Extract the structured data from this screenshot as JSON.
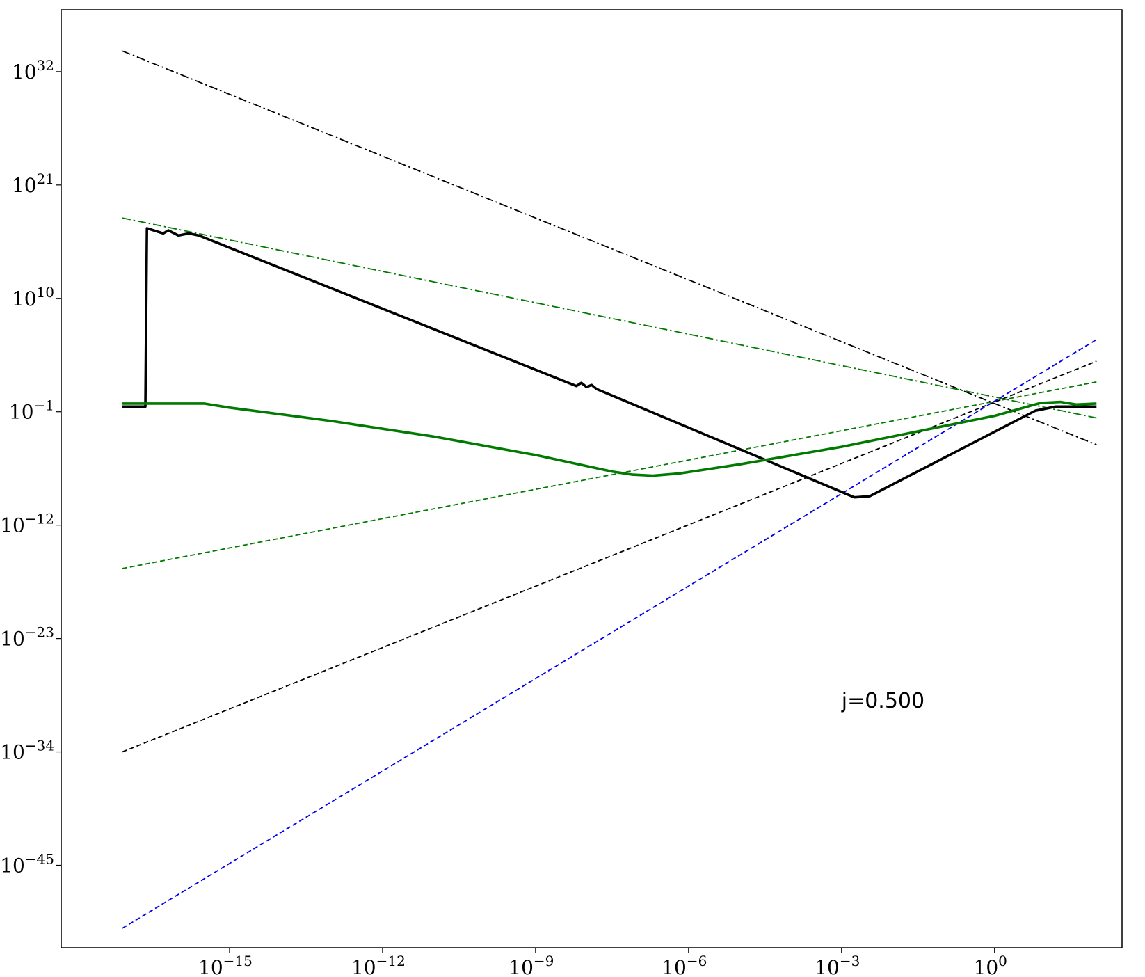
{
  "chart_data": {
    "type": "line",
    "title": "",
    "xlabel": "",
    "ylabel": "",
    "xscale": "log",
    "yscale": "log",
    "xlim_log10": [
      -18.3,
      2.5
    ],
    "ylim_log10": [
      -53.0,
      38.0
    ],
    "grid": false,
    "legend": "none",
    "x_ticks": [
      {
        "base": "10",
        "exp": "−15",
        "log10": -15
      },
      {
        "base": "10",
        "exp": "−12",
        "log10": -12
      },
      {
        "base": "10",
        "exp": "−9",
        "log10": -9
      },
      {
        "base": "10",
        "exp": "−6",
        "log10": -6
      },
      {
        "base": "10",
        "exp": "−3",
        "log10": -3
      },
      {
        "base": "10",
        "exp": "0",
        "log10": 0
      }
    ],
    "y_ticks": [
      {
        "base": "10",
        "exp": "32",
        "log10": 32
      },
      {
        "base": "10",
        "exp": "21",
        "log10": 21
      },
      {
        "base": "10",
        "exp": "10",
        "log10": 10
      },
      {
        "base": "10",
        "exp": "−1",
        "log10": -1
      },
      {
        "base": "10",
        "exp": "−12",
        "log10": -12
      },
      {
        "base": "10",
        "exp": "−23",
        "log10": -23
      },
      {
        "base": "10",
        "exp": "−34",
        "log10": -34
      },
      {
        "base": "10",
        "exp": "−45",
        "log10": -45
      }
    ],
    "annotations": [
      {
        "text": "j=0.500",
        "x_log10": -3.0,
        "y_log10": -29.7
      }
    ],
    "series": [
      {
        "style": "solid-thick",
        "color": "#000000",
        "points_log10": [
          [
            -17.1,
            -0.5
          ],
          [
            -16.65,
            -0.5
          ],
          [
            -16.62,
            16.8
          ],
          [
            -16.3,
            16.3
          ],
          [
            -16.2,
            16.6
          ],
          [
            -16.0,
            16.1
          ],
          [
            -15.8,
            16.3
          ],
          [
            -15.6,
            16.1
          ],
          [
            -8.2,
            1.5
          ],
          [
            -8.1,
            1.8
          ],
          [
            -8.0,
            1.4
          ],
          [
            -7.9,
            1.6
          ],
          [
            -7.8,
            1.2
          ],
          [
            -4.0,
            -6.7
          ],
          [
            -2.75,
            -9.3
          ],
          [
            -2.45,
            -9.2
          ],
          [
            0.8,
            -0.9
          ],
          [
            1.2,
            -0.5
          ],
          [
            2.0,
            -0.5
          ]
        ]
      },
      {
        "style": "solid-thick",
        "color": "#007a00",
        "points_log10": [
          [
            -17.1,
            -0.2
          ],
          [
            -15.5,
            -0.2
          ],
          [
            -15.0,
            -0.6
          ],
          [
            -13.0,
            -1.9
          ],
          [
            -11.0,
            -3.4
          ],
          [
            -9.0,
            -5.2
          ],
          [
            -7.5,
            -6.8
          ],
          [
            -7.1,
            -7.1
          ],
          [
            -6.7,
            -7.2
          ],
          [
            -6.2,
            -7.0
          ],
          [
            -5.0,
            -6.1
          ],
          [
            -3.0,
            -4.4
          ],
          [
            0.0,
            -1.4
          ],
          [
            0.9,
            -0.15
          ],
          [
            1.3,
            -0.05
          ],
          [
            1.6,
            -0.3
          ],
          [
            2.0,
            -0.2
          ]
        ]
      },
      {
        "style": "dashdot",
        "color": "#000000",
        "points_log10": [
          [
            -17.1,
            34.0
          ],
          [
            2.0,
            -4.2
          ]
        ]
      },
      {
        "style": "dashdot",
        "color": "#007a00",
        "points_log10": [
          [
            -17.1,
            17.8
          ],
          [
            2.0,
            -1.6
          ]
        ]
      },
      {
        "style": "dashed",
        "color": "#007a00",
        "points_log10": [
          [
            -17.1,
            -16.2
          ],
          [
            2.0,
            1.9
          ]
        ]
      },
      {
        "style": "dashed",
        "color": "#000000",
        "points_log10": [
          [
            -17.1,
            -34.0
          ],
          [
            2.0,
            3.9
          ]
        ]
      },
      {
        "style": "dashed",
        "color": "#0000ee",
        "points_log10": [
          [
            -17.1,
            -51.1
          ],
          [
            2.0,
            6.0
          ]
        ]
      }
    ]
  }
}
